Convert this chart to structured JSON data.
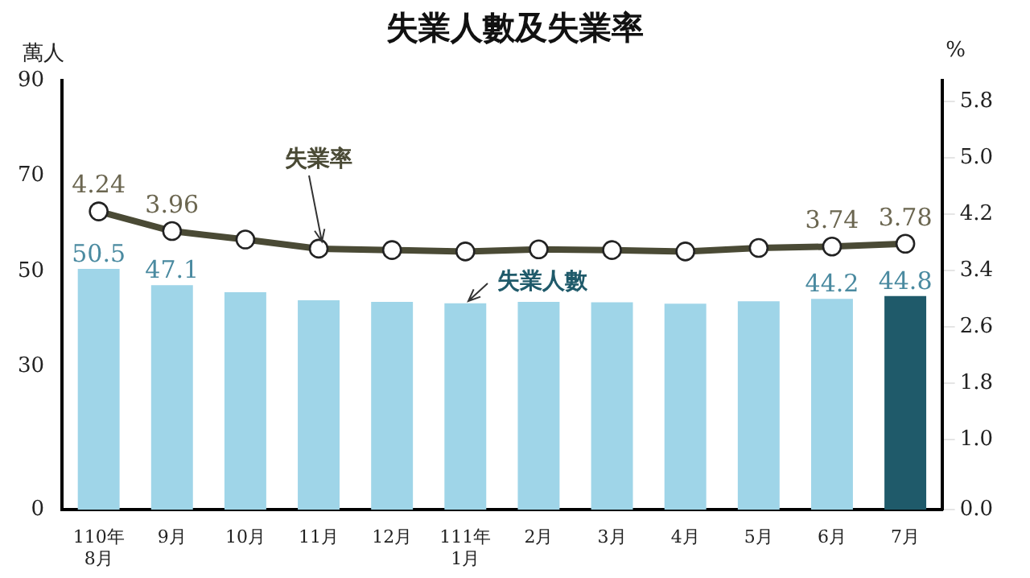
{
  "chart_data": {
    "type": "bar",
    "title": "失業人數及失業率",
    "ylabel": "萬人",
    "y2label": "%",
    "categories": [
      "110年\n8月",
      "9月",
      "10月",
      "11月",
      "12月",
      "111年\n1月",
      "2月",
      "3月",
      "4月",
      "5月",
      "6月",
      "7月"
    ],
    "series": [
      {
        "name": "失業人數",
        "colors": [
          "#9fd5e8",
          "#9fd5e8",
          "#9fd5e8",
          "#9fd5e8",
          "#9fd5e8",
          "#9fd5e8",
          "#9fd5e8",
          "#9fd5e8",
          "#9fd5e8",
          "#9fd5e8",
          "#9fd5e8",
          "#1f5a6a"
        ],
        "values": [
          50.5,
          47.1,
          45.6,
          43.9,
          43.6,
          43.3,
          43.6,
          43.5,
          43.2,
          43.7,
          44.2,
          44.8
        ],
        "value_labels": [
          "50.5",
          "47.1",
          null,
          null,
          null,
          null,
          null,
          null,
          null,
          null,
          "44.2",
          "44.8"
        ]
      },
      {
        "name": "失業率",
        "type": "line",
        "axis": "y2",
        "color": "#4a4a35",
        "marker": "circle",
        "values": [
          4.24,
          3.96,
          3.84,
          3.71,
          3.69,
          3.67,
          3.7,
          3.69,
          3.67,
          3.72,
          3.74,
          3.78
        ],
        "value_labels": [
          "4.24",
          "3.96",
          null,
          null,
          null,
          null,
          null,
          null,
          null,
          null,
          "3.74",
          "3.78"
        ]
      }
    ],
    "ylim": [
      0,
      90
    ],
    "yticks": [
      0,
      30,
      50,
      70,
      90
    ],
    "y2lim": [
      0,
      6.1
    ],
    "y2ticks": [
      {
        "value": 0,
        "label": "0.0"
      },
      {
        "value": 1,
        "label": "1.0"
      },
      1.8,
      2.6,
      3.4,
      4.2,
      {
        "value": 5,
        "label": "5.0"
      },
      5.8
    ],
    "grid": false,
    "legend": false
  }
}
